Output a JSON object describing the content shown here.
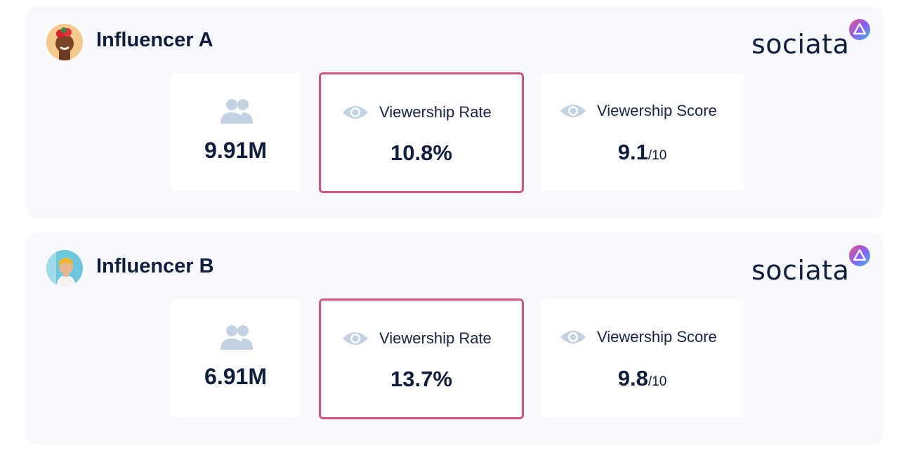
{
  "brand": {
    "wordmark": "sociata",
    "badge_colors": [
      "#f0567a",
      "#8a5cf5",
      "#3fb8e8"
    ]
  },
  "colors": {
    "highlight_border": "#d4567e",
    "icon_gray": "#c3d2e2",
    "text_dark": "#0f1d3f"
  },
  "influencers": [
    {
      "name": "Influencer A",
      "followers": "9.91M",
      "viewership_rate_label": "Viewership Rate",
      "viewership_rate": "10.8%",
      "viewership_score_label": "Viewership Score",
      "viewership_score": "9.1",
      "viewership_score_max": "/10"
    },
    {
      "name": "Influencer B",
      "followers": "6.91M",
      "viewership_rate_label": "Viewership Rate",
      "viewership_rate": "13.7%",
      "viewership_score_label": "Viewership Score",
      "viewership_score": "9.8",
      "viewership_score_max": "/10"
    }
  ]
}
